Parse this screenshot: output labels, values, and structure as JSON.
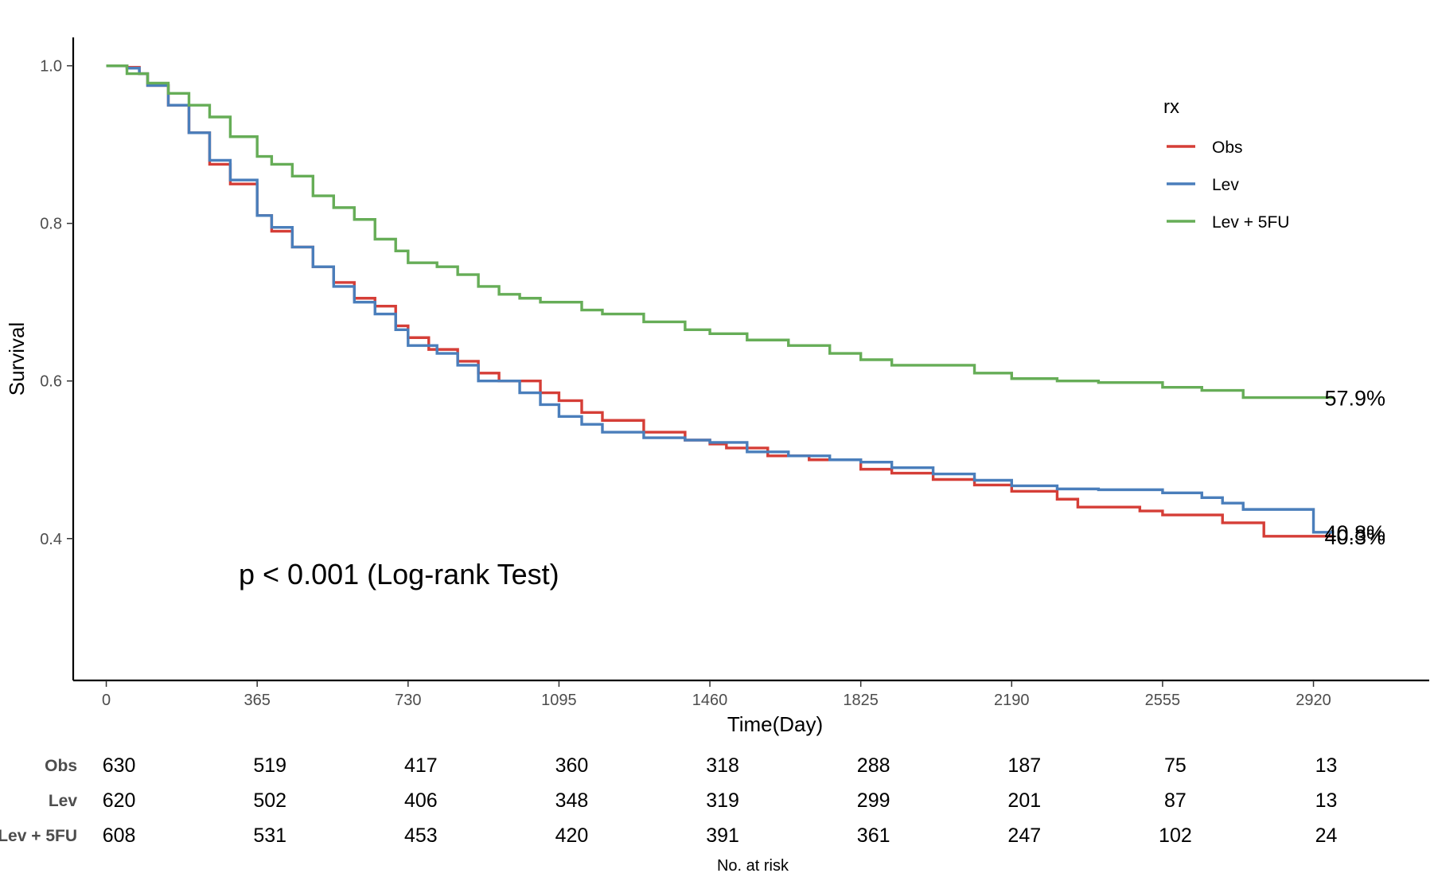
{
  "chart_data": {
    "type": "line",
    "ylabel": "Survival",
    "xlabel": "Time(Day)",
    "xlim": [
      -80,
      3200
    ],
    "ylim": [
      0.22,
      1.036
    ],
    "x_ticks": [
      0,
      365,
      730,
      1095,
      1460,
      1825,
      2190,
      2555,
      2920
    ],
    "y_ticks": [
      0.4,
      0.6,
      0.8,
      1.0
    ],
    "y_tick_labels": [
      "0.4",
      "0.6",
      "0.8",
      "1.0"
    ],
    "grid": false,
    "legend": {
      "title": "rx",
      "position": "top-right",
      "entries": [
        "Obs",
        "Lev",
        "Lev + 5FU"
      ]
    },
    "annotation": "p < 0.001 (Log-rank Test)",
    "series": [
      {
        "name": "Obs",
        "color": "#D53E37",
        "end_label": "40.3%",
        "points": [
          [
            0,
            1.0
          ],
          [
            50,
            0.998
          ],
          [
            80,
            0.99
          ],
          [
            100,
            0.975
          ],
          [
            150,
            0.95
          ],
          [
            200,
            0.915
          ],
          [
            250,
            0.875
          ],
          [
            300,
            0.85
          ],
          [
            365,
            0.81
          ],
          [
            400,
            0.79
          ],
          [
            450,
            0.77
          ],
          [
            500,
            0.745
          ],
          [
            550,
            0.725
          ],
          [
            600,
            0.705
          ],
          [
            650,
            0.695
          ],
          [
            700,
            0.67
          ],
          [
            730,
            0.655
          ],
          [
            780,
            0.64
          ],
          [
            850,
            0.625
          ],
          [
            900,
            0.61
          ],
          [
            950,
            0.6
          ],
          [
            1000,
            0.6
          ],
          [
            1050,
            0.585
          ],
          [
            1095,
            0.575
          ],
          [
            1150,
            0.56
          ],
          [
            1200,
            0.55
          ],
          [
            1300,
            0.535
          ],
          [
            1400,
            0.525
          ],
          [
            1460,
            0.52
          ],
          [
            1500,
            0.515
          ],
          [
            1600,
            0.505
          ],
          [
            1700,
            0.5
          ],
          [
            1825,
            0.488
          ],
          [
            1900,
            0.483
          ],
          [
            2000,
            0.475
          ],
          [
            2100,
            0.468
          ],
          [
            2190,
            0.46
          ],
          [
            2300,
            0.45
          ],
          [
            2350,
            0.44
          ],
          [
            2500,
            0.435
          ],
          [
            2555,
            0.43
          ],
          [
            2700,
            0.42
          ],
          [
            2800,
            0.403
          ],
          [
            2920,
            0.403
          ],
          [
            2970,
            0.403
          ]
        ]
      },
      {
        "name": "Lev",
        "color": "#4A7EBB",
        "end_label": "40.8%",
        "points": [
          [
            0,
            1.0
          ],
          [
            50,
            0.997
          ],
          [
            80,
            0.99
          ],
          [
            100,
            0.975
          ],
          [
            150,
            0.95
          ],
          [
            200,
            0.915
          ],
          [
            250,
            0.88
          ],
          [
            300,
            0.855
          ],
          [
            365,
            0.81
          ],
          [
            400,
            0.795
          ],
          [
            450,
            0.77
          ],
          [
            500,
            0.745
          ],
          [
            550,
            0.72
          ],
          [
            600,
            0.7
          ],
          [
            650,
            0.685
          ],
          [
            700,
            0.665
          ],
          [
            730,
            0.645
          ],
          [
            800,
            0.635
          ],
          [
            850,
            0.62
          ],
          [
            900,
            0.6
          ],
          [
            1000,
            0.585
          ],
          [
            1050,
            0.57
          ],
          [
            1095,
            0.555
          ],
          [
            1150,
            0.545
          ],
          [
            1200,
            0.535
          ],
          [
            1300,
            0.528
          ],
          [
            1400,
            0.525
          ],
          [
            1460,
            0.522
          ],
          [
            1550,
            0.51
          ],
          [
            1650,
            0.505
          ],
          [
            1750,
            0.5
          ],
          [
            1825,
            0.497
          ],
          [
            1900,
            0.49
          ],
          [
            2000,
            0.482
          ],
          [
            2100,
            0.474
          ],
          [
            2190,
            0.467
          ],
          [
            2300,
            0.463
          ],
          [
            2400,
            0.462
          ],
          [
            2555,
            0.458
          ],
          [
            2650,
            0.452
          ],
          [
            2700,
            0.445
          ],
          [
            2750,
            0.437
          ],
          [
            2900,
            0.437
          ],
          [
            2920,
            0.408
          ],
          [
            2970,
            0.408
          ]
        ]
      },
      {
        "name": "Lev + 5FU",
        "color": "#66AD57",
        "end_label": "57.9%",
        "points": [
          [
            0,
            1.0
          ],
          [
            50,
            0.99
          ],
          [
            100,
            0.978
          ],
          [
            150,
            0.965
          ],
          [
            200,
            0.95
          ],
          [
            250,
            0.935
          ],
          [
            300,
            0.91
          ],
          [
            365,
            0.885
          ],
          [
            400,
            0.875
          ],
          [
            450,
            0.86
          ],
          [
            500,
            0.835
          ],
          [
            550,
            0.82
          ],
          [
            600,
            0.805
          ],
          [
            650,
            0.78
          ],
          [
            700,
            0.765
          ],
          [
            730,
            0.75
          ],
          [
            800,
            0.745
          ],
          [
            850,
            0.735
          ],
          [
            900,
            0.72
          ],
          [
            950,
            0.71
          ],
          [
            1000,
            0.705
          ],
          [
            1050,
            0.7
          ],
          [
            1095,
            0.7
          ],
          [
            1150,
            0.69
          ],
          [
            1200,
            0.685
          ],
          [
            1300,
            0.675
          ],
          [
            1400,
            0.665
          ],
          [
            1460,
            0.66
          ],
          [
            1550,
            0.652
          ],
          [
            1650,
            0.645
          ],
          [
            1750,
            0.635
          ],
          [
            1825,
            0.627
          ],
          [
            1900,
            0.62
          ],
          [
            2000,
            0.62
          ],
          [
            2100,
            0.61
          ],
          [
            2190,
            0.603
          ],
          [
            2300,
            0.6
          ],
          [
            2400,
            0.598
          ],
          [
            2500,
            0.598
          ],
          [
            2555,
            0.592
          ],
          [
            2650,
            0.588
          ],
          [
            2700,
            0.588
          ],
          [
            2750,
            0.579
          ],
          [
            2920,
            0.579
          ],
          [
            2970,
            0.579
          ]
        ]
      }
    ]
  },
  "risk_table": {
    "title": "No. at risk",
    "times": [
      0,
      365,
      730,
      1095,
      1460,
      1825,
      2190,
      2555,
      2920
    ],
    "rows": [
      {
        "name": "Obs",
        "values": [
          630,
          519,
          417,
          360,
          318,
          288,
          187,
          75,
          13
        ]
      },
      {
        "name": "Lev",
        "values": [
          620,
          502,
          406,
          348,
          319,
          299,
          201,
          87,
          13
        ]
      },
      {
        "name": "Lev + 5FU",
        "values": [
          608,
          531,
          453,
          420,
          391,
          361,
          247,
          102,
          24
        ]
      }
    ]
  }
}
